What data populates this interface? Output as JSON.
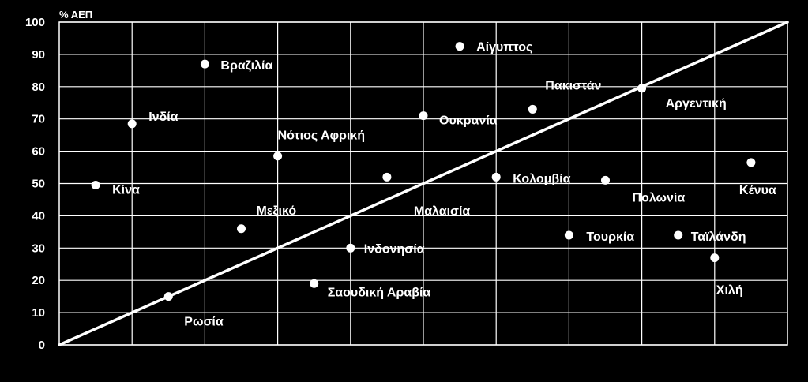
{
  "chart_data": {
    "type": "scatter",
    "title": "",
    "ylabel": "% ΑΕΠ",
    "xlabel": "",
    "ylim": [
      0,
      100
    ],
    "yticks": [
      0,
      10,
      20,
      30,
      40,
      50,
      60,
      70,
      80,
      90,
      100
    ],
    "xlim": [
      0,
      10
    ],
    "grid": true,
    "colors": {
      "background": "#000000",
      "marks": "#ffffff"
    },
    "reference_line": {
      "from": [
        0,
        0
      ],
      "to": [
        10,
        100
      ]
    },
    "points": [
      {
        "label": "Κίνα",
        "x": 0.5,
        "y": 49.5
      },
      {
        "label": "Ινδία",
        "x": 1.0,
        "y": 68.5
      },
      {
        "label": "Ρωσία",
        "x": 1.5,
        "y": 15
      },
      {
        "label": "Βραζιλία",
        "x": 2.0,
        "y": 87
      },
      {
        "label": "Μεξικό",
        "x": 2.5,
        "y": 36
      },
      {
        "label": "Νότιος Αφρική",
        "x": 3.0,
        "y": 58.5
      },
      {
        "label": "Σαουδική Αραβία",
        "x": 3.5,
        "y": 19
      },
      {
        "label": "Ινδονησία",
        "x": 4.0,
        "y": 30
      },
      {
        "label": "Μαλαισία",
        "x": 4.5,
        "y": 52
      },
      {
        "label": "Ουκρανία",
        "x": 5.0,
        "y": 71
      },
      {
        "label": "Αίγυπτος",
        "x": 5.5,
        "y": 92.5
      },
      {
        "label": "Κολομβία",
        "x": 6.0,
        "y": 52
      },
      {
        "label": "Πακιστάν",
        "x": 6.5,
        "y": 73
      },
      {
        "label": "Τουρκία",
        "x": 7.0,
        "y": 34
      },
      {
        "label": "Πολωνία",
        "x": 7.5,
        "y": 51
      },
      {
        "label": "Αργεντική",
        "x": 8.0,
        "y": 79.5
      },
      {
        "label": "Ταϊλάνδη",
        "x": 8.5,
        "y": 34
      },
      {
        "label": "Χιλή",
        "x": 9.0,
        "y": 27
      },
      {
        "label": "Κένυα",
        "x": 9.5,
        "y": 56.5
      }
    ]
  }
}
